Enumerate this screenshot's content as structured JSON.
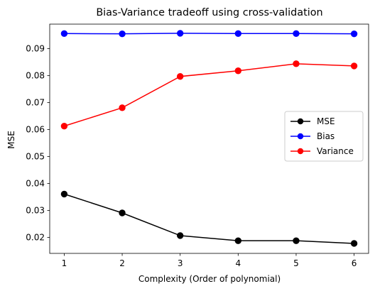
{
  "chart_data": {
    "type": "line",
    "title": "Bias-Variance tradeoff using cross-validation",
    "xlabel": "Complexity (Order of polynomial)",
    "ylabel": "MSE",
    "x": [
      1,
      2,
      3,
      4,
      5,
      6
    ],
    "xlim": [
      0.75,
      6.25
    ],
    "ylim": [
      0.0141,
      0.0991
    ],
    "yticks": [
      0.02,
      0.03,
      0.04,
      0.05,
      0.06,
      0.07,
      0.08,
      0.09
    ],
    "ytick_labels": [
      "0.02",
      "0.03",
      "0.04",
      "0.05",
      "0.06",
      "0.07",
      "0.08",
      "0.09"
    ],
    "xticks": [
      1,
      2,
      3,
      4,
      5,
      6
    ],
    "xtick_labels": [
      "1",
      "2",
      "3",
      "4",
      "5",
      "6"
    ],
    "grid": false,
    "legend_position": "center-right",
    "series": [
      {
        "name": "MSE",
        "color": "#000000",
        "values": [
          0.0361,
          0.0291,
          0.0207,
          0.0188,
          0.0188,
          0.0178
        ]
      },
      {
        "name": "Bias",
        "color": "#0000ff",
        "values": [
          0.0956,
          0.0955,
          0.0957,
          0.0956,
          0.0956,
          0.0955
        ]
      },
      {
        "name": "Variance",
        "color": "#ff0000",
        "values": [
          0.0613,
          0.0681,
          0.0797,
          0.0818,
          0.0844,
          0.0836
        ]
      }
    ]
  }
}
